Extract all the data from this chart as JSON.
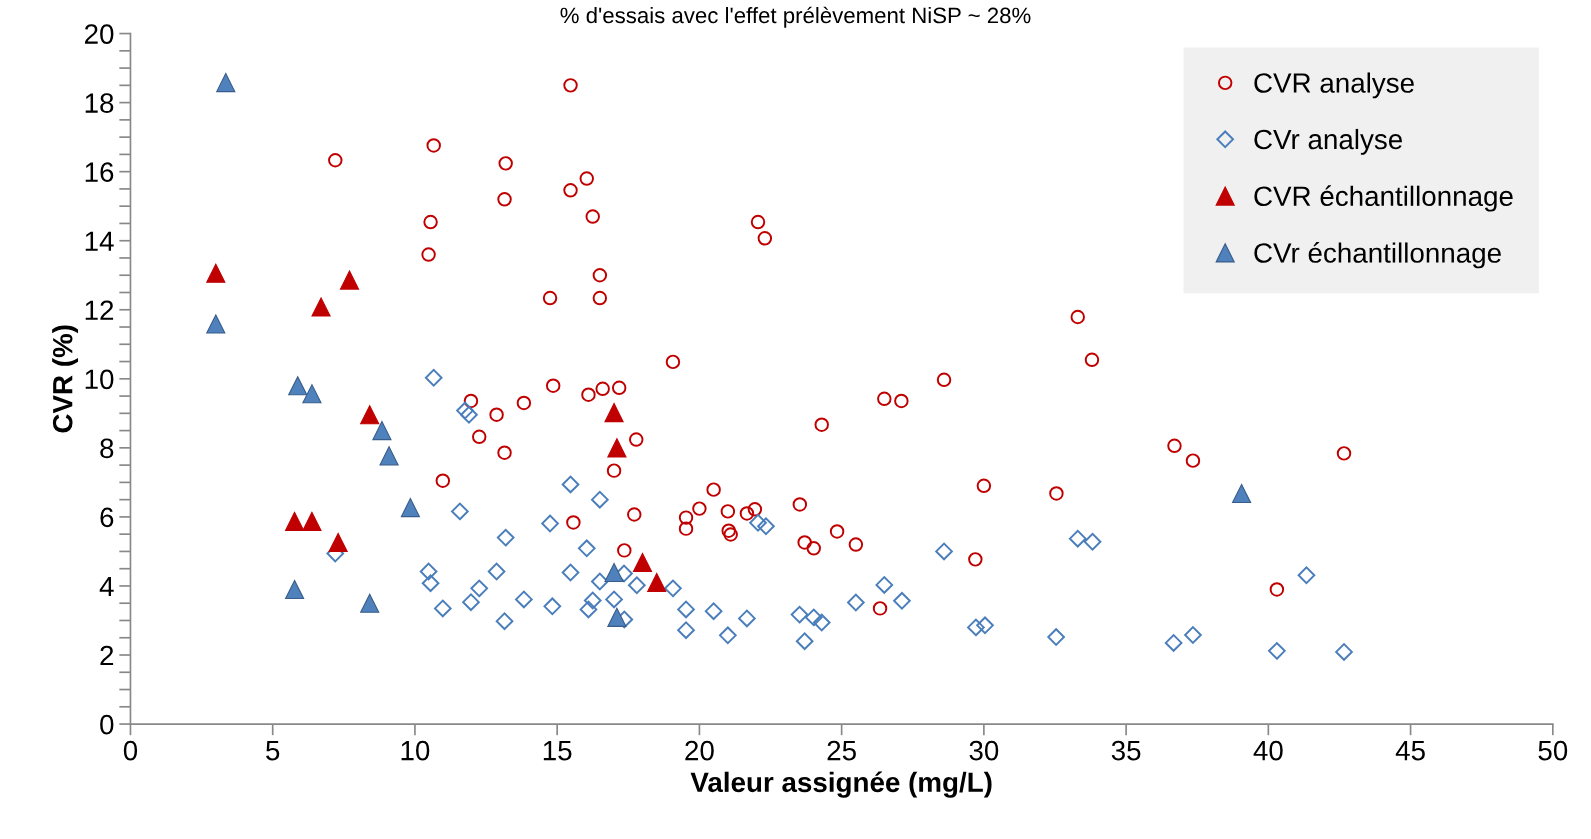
{
  "chart_data": {
    "type": "scatter",
    "title": "% d'essais avec l'effet prélèvement NiSP ~ 28%",
    "xlabel": "Valeur assignée (mg/L)",
    "ylabel": "CVR (%)",
    "xlim": [
      0,
      50
    ],
    "xticks": [
      0,
      5,
      10,
      15,
      20,
      25,
      30,
      35,
      40,
      45,
      50
    ],
    "ylim": [
      0,
      20
    ],
    "yticks": [
      0,
      2,
      4,
      6,
      8,
      10,
      12,
      14,
      16,
      18,
      20
    ],
    "grid": false,
    "legend": "top right",
    "series": [
      {
        "name": "CVR analyse",
        "color": "#c00000",
        "marker": "circle",
        "x": [
          7.2,
          10.66,
          10.55,
          10.48,
          15.47,
          13.19,
          13.15,
          16.04,
          15.47,
          16.25,
          16.5,
          16.5,
          14.75,
          22.06,
          22.3,
          19.07,
          14.86,
          16.1,
          16.6,
          17.18,
          11.97,
          13.83,
          12.87,
          12.26,
          13.15,
          17.78,
          17.0,
          10.98,
          17.71,
          15.57,
          17.36,
          33.3,
          33.8,
          28.6,
          26.5,
          27.1,
          24.3,
          36.7,
          37.35,
          30.0,
          32.55,
          20.5,
          20.0,
          19.53,
          19.53,
          21.0,
          21.03,
          21.1,
          21.67,
          21.95,
          23.53,
          23.7,
          24.02,
          24.84,
          25.5,
          29.7,
          26.35,
          40.3,
          42.66
        ],
        "values": [
          16.33,
          16.76,
          14.54,
          13.6,
          18.5,
          16.24,
          15.2,
          15.8,
          15.46,
          14.7,
          13.0,
          12.34,
          12.34,
          14.54,
          14.07,
          10.49,
          9.8,
          9.54,
          9.71,
          9.74,
          9.36,
          9.3,
          8.96,
          8.32,
          7.86,
          8.24,
          7.34,
          7.05,
          6.07,
          5.84,
          5.03,
          11.79,
          10.55,
          9.97,
          9.42,
          9.36,
          8.67,
          8.06,
          7.63,
          6.9,
          6.68,
          6.79,
          6.24,
          5.98,
          5.66,
          6.16,
          5.6,
          5.49,
          6.1,
          6.22,
          6.36,
          5.26,
          5.09,
          5.58,
          5.2,
          4.77,
          3.35,
          3.9,
          7.84
        ]
      },
      {
        "name": "CVr analyse",
        "color": "#4a7ebb",
        "marker": "diamond",
        "x": [
          10.66,
          11.76,
          11.9,
          11.58,
          7.2,
          10.48,
          10.55,
          10.98,
          11.97,
          12.26,
          12.87,
          13.15,
          13.19,
          13.83,
          14.83,
          14.75,
          15.47,
          15.47,
          16.04,
          16.5,
          16.1,
          16.25,
          16.5,
          17.0,
          17.35,
          17.36,
          17.8,
          19.07,
          19.53,
          19.53,
          20.5,
          21.0,
          21.67,
          22.06,
          22.34,
          28.6,
          29.72,
          30.04,
          32.54,
          33.3,
          33.82,
          36.67,
          37.35,
          26.5,
          27.12,
          25.5,
          23.52,
          23.7,
          24.02,
          24.3,
          41.34,
          40.3,
          42.66
        ],
        "values": [
          10.03,
          9.08,
          8.96,
          6.16,
          4.94,
          4.42,
          4.08,
          3.35,
          3.53,
          3.93,
          4.42,
          2.98,
          5.4,
          3.61,
          3.41,
          5.81,
          6.94,
          4.39,
          5.09,
          6.5,
          3.32,
          3.58,
          4.13,
          3.61,
          4.36,
          3.03,
          4.02,
          3.93,
          3.32,
          2.72,
          3.27,
          2.57,
          3.06,
          5.83,
          5.73,
          5.0,
          2.8,
          2.86,
          2.52,
          5.37,
          5.28,
          2.35,
          2.58,
          4.03,
          3.57,
          3.52,
          3.17,
          2.4,
          3.09,
          2.94,
          4.31,
          2.12,
          2.09
        ]
      },
      {
        "name": "CVR échantillonnage",
        "color": "#c00000",
        "marker": "triangle",
        "x": [
          3.0,
          6.7,
          7.7,
          5.77,
          6.38,
          7.3,
          8.41,
          17.0,
          17.1,
          18.0,
          18.5
        ],
        "values": [
          13.06,
          12.08,
          12.86,
          5.87,
          5.87,
          5.26,
          8.96,
          9.02,
          8.0,
          4.68,
          4.1
        ]
      },
      {
        "name": "CVr échantillonnage",
        "color": "#4f81bd",
        "marker": "triangle",
        "x": [
          3.35,
          3.0,
          5.88,
          6.38,
          8.84,
          9.09,
          9.84,
          5.77,
          8.41,
          17.0,
          17.1,
          39.06
        ],
        "values": [
          18.58,
          11.59,
          9.8,
          9.57,
          8.5,
          7.77,
          6.27,
          3.9,
          3.5,
          4.39,
          3.09,
          6.68
        ]
      }
    ]
  }
}
